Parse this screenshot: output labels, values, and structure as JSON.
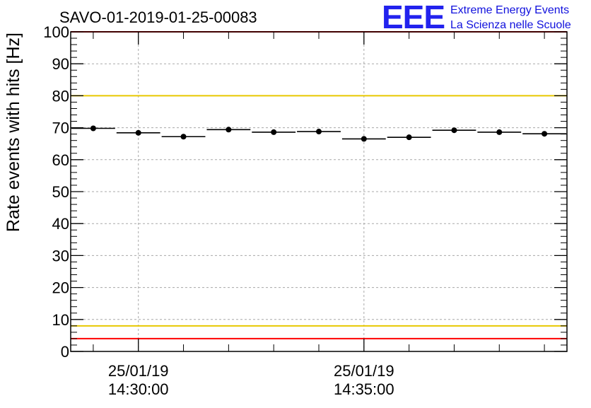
{
  "chart_data": {
    "type": "scatter",
    "title": "SAVO-01-2019-01-25-00083",
    "xlabel": "",
    "ylabel": "Rate events with hits [Hz]",
    "ylim": [
      0,
      100
    ],
    "y_ticks": [
      "0",
      "10",
      "20",
      "30",
      "40",
      "50",
      "60",
      "70",
      "80",
      "90",
      "100"
    ],
    "x_unit": "minutes since 25/01/19 14:28:30",
    "xlim": [
      0,
      11
    ],
    "x_ticks": [
      {
        "x": 1.5,
        "date": "25/01/19",
        "time": "14:30:00"
      },
      {
        "x": 6.5,
        "date": "25/01/19",
        "time": "14:35:00"
      }
    ],
    "series": [
      {
        "name": "rate",
        "x": [
          0.5,
          1.5,
          2.5,
          3.5,
          4.5,
          5.5,
          6.5,
          7.5,
          8.5,
          9.5,
          10.5
        ],
        "x_halfwidth": 0.5,
        "values": [
          69.8,
          68.4,
          67.2,
          69.4,
          68.6,
          68.8,
          66.5,
          67.0,
          69.2,
          68.6,
          68.1
        ],
        "errors": [
          0.6,
          0.6,
          0.6,
          0.6,
          0.6,
          0.6,
          0.6,
          0.6,
          0.6,
          0.6,
          0.6
        ]
      }
    ],
    "reference_lines": [
      {
        "name": "upper-warning",
        "y": 80,
        "color": "#e8c800"
      },
      {
        "name": "lower-warning",
        "y": 8,
        "color": "#e8c800"
      },
      {
        "name": "lower-alarm",
        "y": 4,
        "color": "#ff0000"
      },
      {
        "name": "upper-alarm",
        "y": 100,
        "color": "#ff0000"
      }
    ],
    "grid": true
  },
  "logo": {
    "mark": "EEE",
    "line1": "Extreme Energy Events",
    "line2": "La Scienza nelle Scuole",
    "color": "#2222ee"
  }
}
